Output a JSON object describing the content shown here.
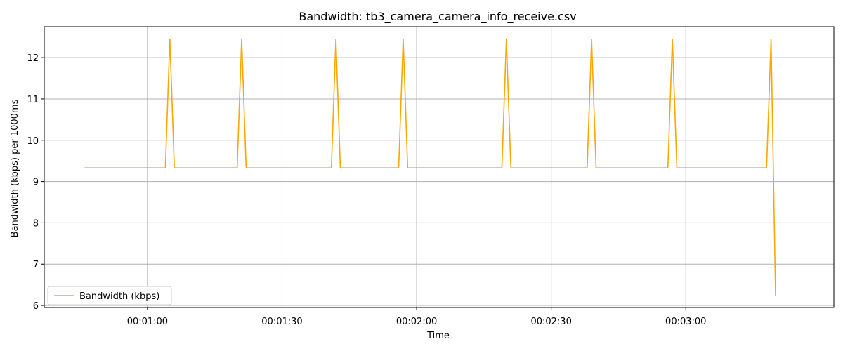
{
  "chart_data": {
    "type": "line",
    "title": "Bandwidth: tb3_camera_camera_info_receive.csv",
    "xlabel": "Time",
    "ylabel": "Bandwidth (kbps) per 1000ms",
    "xlim": [
      "00:00:37",
      "00:03:33"
    ],
    "ylim": [
      5.95,
      12.75
    ],
    "x_ticks": [
      "00:01:00",
      "00:01:30",
      "00:02:00",
      "00:02:30",
      "00:03:00"
    ],
    "y_ticks": [
      6,
      7,
      8,
      9,
      10,
      11,
      12
    ],
    "grid": true,
    "legend_position": "lower left",
    "series": [
      {
        "name": "Bandwidth (kbps)",
        "color": "#ffa500",
        "x": [
          "00:00:46",
          "00:01:04",
          "00:01:05",
          "00:01:06",
          "00:01:20",
          "00:01:21",
          "00:01:22",
          "00:01:41",
          "00:01:42",
          "00:01:43",
          "00:01:56",
          "00:01:57",
          "00:01:58",
          "00:02:19",
          "00:02:20",
          "00:02:21",
          "00:02:38",
          "00:02:39",
          "00:02:40",
          "00:02:56",
          "00:02:57",
          "00:02:58",
          "00:03:18",
          "00:03:19",
          "00:03:20"
        ],
        "values": [
          9.33,
          9.33,
          12.45,
          9.33,
          9.33,
          12.45,
          9.33,
          9.33,
          12.45,
          9.33,
          9.33,
          12.45,
          9.33,
          9.33,
          12.45,
          9.33,
          9.33,
          12.45,
          9.33,
          9.33,
          12.45,
          9.33,
          9.33,
          12.45,
          6.22
        ]
      }
    ]
  }
}
